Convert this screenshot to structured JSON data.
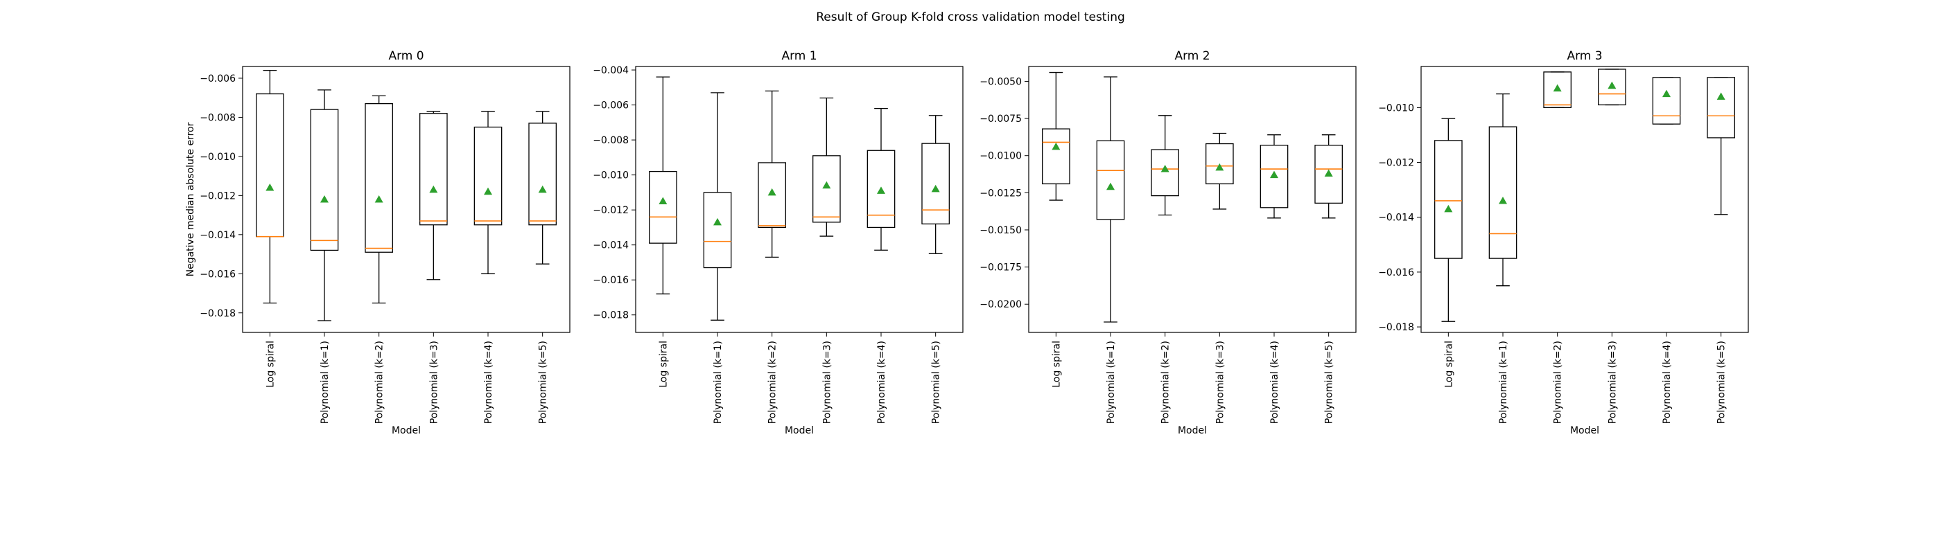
{
  "figure": {
    "suptitle": "Result of Group K-fold cross validation model testing"
  },
  "colors": {
    "box": "#000000",
    "median": "#ff7f0e",
    "mean": "#2ca02c"
  },
  "chart_data": [
    {
      "type": "box",
      "title": "Arm 0",
      "xlabel": "Model",
      "ylabel": "Negative median absolute error",
      "categories": [
        "Log spiral",
        "Polynomial (k=1)",
        "Polynomial (k=2)",
        "Polynomial (k=3)",
        "Polynomial (k=4)",
        "Polynomial (k=5)"
      ],
      "ylim": [
        -0.019,
        -0.0054
      ],
      "yticks": [
        -0.018,
        -0.016,
        -0.014,
        -0.012,
        -0.01,
        -0.008,
        -0.006
      ],
      "ytick_labels": [
        "−0.018",
        "−0.016",
        "−0.014",
        "−0.012",
        "−0.010",
        "−0.008",
        "−0.006"
      ],
      "boxes": [
        {
          "whislo": -0.0175,
          "q1": -0.0141,
          "med": -0.0141,
          "q3": -0.0068,
          "whishi": -0.0056,
          "mean": -0.0116
        },
        {
          "whislo": -0.0184,
          "q1": -0.0148,
          "med": -0.0143,
          "q3": -0.0076,
          "whishi": -0.0066,
          "mean": -0.0122
        },
        {
          "whislo": -0.0175,
          "q1": -0.0149,
          "med": -0.0147,
          "q3": -0.0073,
          "whishi": -0.0069,
          "mean": -0.0122
        },
        {
          "whislo": -0.0163,
          "q1": -0.0135,
          "med": -0.0133,
          "q3": -0.0078,
          "whishi": -0.0077,
          "mean": -0.0117
        },
        {
          "whislo": -0.016,
          "q1": -0.0135,
          "med": -0.0133,
          "q3": -0.0085,
          "whishi": -0.0077,
          "mean": -0.0118
        },
        {
          "whislo": -0.0155,
          "q1": -0.0135,
          "med": -0.0133,
          "q3": -0.0083,
          "whishi": -0.0077,
          "mean": -0.0117
        }
      ]
    },
    {
      "type": "box",
      "title": "Arm 1",
      "xlabel": "Model",
      "ylabel": "",
      "categories": [
        "Log spiral",
        "Polynomial (k=1)",
        "Polynomial (k=2)",
        "Polynomial (k=3)",
        "Polynomial (k=4)",
        "Polynomial (k=5)"
      ],
      "ylim": [
        -0.019,
        -0.0038
      ],
      "yticks": [
        -0.018,
        -0.016,
        -0.014,
        -0.012,
        -0.01,
        -0.008,
        -0.006,
        -0.004
      ],
      "ytick_labels": [
        "−0.018",
        "−0.016",
        "−0.014",
        "−0.012",
        "−0.010",
        "−0.008",
        "−0.006",
        "−0.004"
      ],
      "boxes": [
        {
          "whislo": -0.0168,
          "q1": -0.0139,
          "med": -0.0124,
          "q3": -0.0098,
          "whishi": -0.0044,
          "mean": -0.0115
        },
        {
          "whislo": -0.0183,
          "q1": -0.0153,
          "med": -0.0138,
          "q3": -0.011,
          "whishi": -0.0053,
          "mean": -0.0127
        },
        {
          "whislo": -0.0147,
          "q1": -0.013,
          "med": -0.0129,
          "q3": -0.0093,
          "whishi": -0.0052,
          "mean": -0.011
        },
        {
          "whislo": -0.0135,
          "q1": -0.0127,
          "med": -0.0124,
          "q3": -0.0089,
          "whishi": -0.0056,
          "mean": -0.0106
        },
        {
          "whislo": -0.0143,
          "q1": -0.013,
          "med": -0.0123,
          "q3": -0.0086,
          "whishi": -0.0062,
          "mean": -0.0109
        },
        {
          "whislo": -0.0145,
          "q1": -0.0128,
          "med": -0.012,
          "q3": -0.0082,
          "whishi": -0.0066,
          "mean": -0.0108
        }
      ]
    },
    {
      "type": "box",
      "title": "Arm 2",
      "xlabel": "Model",
      "ylabel": "",
      "categories": [
        "Log spiral",
        "Polynomial (k=1)",
        "Polynomial (k=2)",
        "Polynomial (k=3)",
        "Polynomial (k=4)",
        "Polynomial (k=5)"
      ],
      "ylim": [
        -0.0219,
        -0.004
      ],
      "yticks": [
        -0.02,
        -0.0175,
        -0.015,
        -0.0125,
        -0.01,
        -0.0075,
        -0.005
      ],
      "ytick_labels": [
        "−0.0200",
        "−0.0175",
        "−0.0150",
        "−0.0125",
        "−0.0100",
        "−0.0075",
        "−0.0050"
      ],
      "boxes": [
        {
          "whislo": -0.013,
          "q1": -0.0119,
          "med": -0.0091,
          "q3": -0.0082,
          "whishi": -0.0044,
          "mean": -0.0094
        },
        {
          "whislo": -0.0212,
          "q1": -0.0143,
          "med": -0.011,
          "q3": -0.009,
          "whishi": -0.0047,
          "mean": -0.0121
        },
        {
          "whislo": -0.014,
          "q1": -0.0127,
          "med": -0.0109,
          "q3": -0.0096,
          "whishi": -0.0073,
          "mean": -0.0109
        },
        {
          "whislo": -0.0136,
          "q1": -0.0119,
          "med": -0.0107,
          "q3": -0.0092,
          "whishi": -0.0085,
          "mean": -0.0108
        },
        {
          "whislo": -0.0142,
          "q1": -0.0135,
          "med": -0.0109,
          "q3": -0.0093,
          "whishi": -0.0086,
          "mean": -0.0113
        },
        {
          "whislo": -0.0142,
          "q1": -0.0132,
          "med": -0.0109,
          "q3": -0.0093,
          "whishi": -0.0086,
          "mean": -0.0112
        }
      ]
    },
    {
      "type": "box",
      "title": "Arm 3",
      "xlabel": "Model",
      "ylabel": "",
      "categories": [
        "Log spiral",
        "Polynomial (k=1)",
        "Polynomial (k=2)",
        "Polynomial (k=3)",
        "Polynomial (k=4)",
        "Polynomial (k=5)"
      ],
      "ylim": [
        -0.0182,
        -0.0085
      ],
      "yticks": [
        -0.018,
        -0.016,
        -0.014,
        -0.012,
        -0.01
      ],
      "ytick_labels": [
        "−0.018",
        "−0.016",
        "−0.014",
        "−0.012",
        "−0.010"
      ],
      "boxes": [
        {
          "whislo": -0.0178,
          "q1": -0.0155,
          "med": -0.0134,
          "q3": -0.0112,
          "whishi": -0.0104,
          "mean": -0.0137
        },
        {
          "whislo": -0.0165,
          "q1": -0.0155,
          "med": -0.0146,
          "q3": -0.0107,
          "whishi": -0.0095,
          "mean": -0.0134
        },
        {
          "whislo": -0.01,
          "q1": -0.01,
          "med": -0.0099,
          "q3": -0.0087,
          "whishi": -0.0087,
          "mean": -0.0093
        },
        {
          "whislo": -0.0099,
          "q1": -0.0099,
          "med": -0.0095,
          "q3": -0.0086,
          "whishi": -0.0086,
          "mean": -0.0092
        },
        {
          "whislo": -0.0106,
          "q1": -0.0106,
          "med": -0.0103,
          "q3": -0.0089,
          "whishi": -0.0089,
          "mean": -0.0095
        },
        {
          "whislo": -0.0139,
          "q1": -0.0111,
          "med": -0.0103,
          "q3": -0.0089,
          "whishi": -0.0089,
          "mean": -0.0096
        }
      ]
    }
  ]
}
